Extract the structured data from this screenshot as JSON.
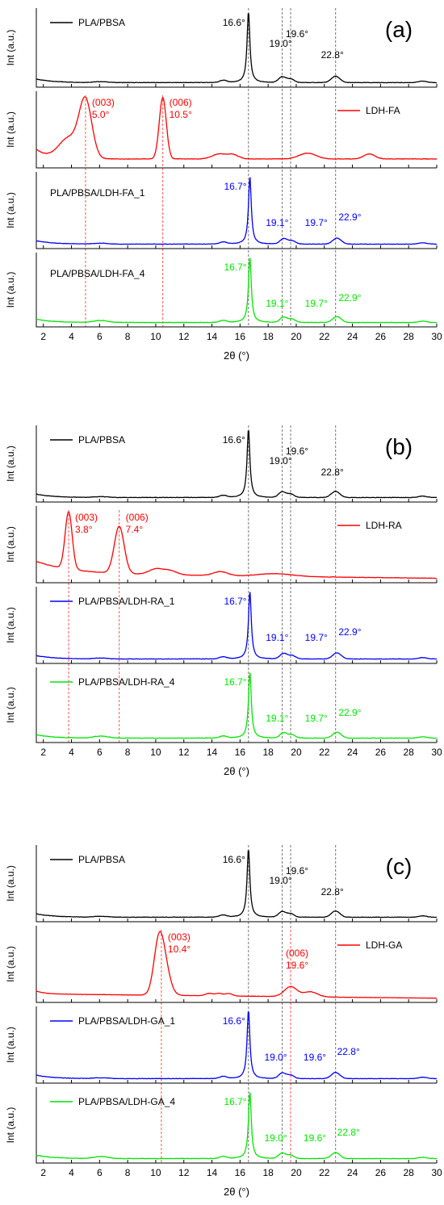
{
  "chart_data": [
    {
      "type": "line",
      "panel_label": "(a)",
      "xlabel": "2θ (°)",
      "xlim": [
        1.5,
        30
      ],
      "xticks": [
        "2",
        "4",
        "6",
        "8",
        "10",
        "12",
        "14",
        "16",
        "18",
        "20",
        "22",
        "24",
        "26",
        "28",
        "30"
      ],
      "ylabel": "Int (a.u.)",
      "colors": {
        "PLA/PBSA": "#000000",
        "LDH": "#ff0000",
        "blend_1": "#0000ff",
        "blend_4": "#00e600"
      },
      "gray_ref_lines": [
        16.6,
        19.0,
        19.6,
        22.8
      ],
      "red_ref_lines": [
        5.0,
        10.5
      ],
      "series": [
        {
          "name": "PLA/PBSA",
          "color": "#000000",
          "peaks": [
            {
              "x": 16.6,
              "label": "16.6°"
            },
            {
              "x": 19.0,
              "label": "19.0°"
            },
            {
              "x": 19.6,
              "label": "19.6°"
            },
            {
              "x": 22.8,
              "label": "22.8°"
            }
          ]
        },
        {
          "name": "LDH-FA",
          "color": "#ff0000",
          "peaks": [
            {
              "x": 5.0,
              "hkl": "(003)",
              "label": "5.0°"
            },
            {
              "x": 10.5,
              "hkl": "(006)",
              "label": "10.5°"
            }
          ]
        },
        {
          "name": "PLA/PBSA/LDH-FA_1",
          "color": "#0000ff",
          "peaks": [
            {
              "x": 16.7,
              "label": "16.7°"
            },
            {
              "x": 19.1,
              "label": "19.1°"
            },
            {
              "x": 19.7,
              "label": "19.7°"
            },
            {
              "x": 22.9,
              "label": "22.9°"
            }
          ]
        },
        {
          "name": "PLA/PBSA/LDH-FA_4",
          "color": "#00e600",
          "peaks": [
            {
              "x": 16.7,
              "label": "16.7°"
            },
            {
              "x": 19.1,
              "label": "19.1°"
            },
            {
              "x": 19.7,
              "label": "19.7°"
            },
            {
              "x": 22.9,
              "label": "22.9°"
            }
          ]
        }
      ]
    },
    {
      "type": "line",
      "panel_label": "(b)",
      "xlabel": "2θ (°)",
      "xlim": [
        1.5,
        30
      ],
      "xticks": [
        "2",
        "4",
        "6",
        "8",
        "10",
        "12",
        "14",
        "16",
        "18",
        "20",
        "22",
        "24",
        "26",
        "28",
        "30"
      ],
      "ylabel": "Int (a.u.)",
      "gray_ref_lines": [
        16.6,
        19.0,
        19.6,
        22.8
      ],
      "red_ref_lines": [
        3.8,
        7.4
      ],
      "series": [
        {
          "name": "PLA/PBSA",
          "color": "#000000",
          "peaks": [
            {
              "x": 16.6,
              "label": "16.6°"
            },
            {
              "x": 19.0,
              "label": "19.0°"
            },
            {
              "x": 19.6,
              "label": "19.6°"
            },
            {
              "x": 22.8,
              "label": "22.8°"
            }
          ]
        },
        {
          "name": "LDH-RA",
          "color": "#ff0000",
          "peaks": [
            {
              "x": 3.8,
              "hkl": "(003)",
              "label": "3.8°"
            },
            {
              "x": 7.4,
              "hkl": "(006)",
              "label": "7.4°"
            }
          ]
        },
        {
          "name": "PLA/PBSA/LDH-RA_1",
          "color": "#0000ff",
          "peaks": [
            {
              "x": 16.7,
              "label": "16.7°"
            },
            {
              "x": 19.1,
              "label": "19.1°"
            },
            {
              "x": 19.7,
              "label": "19.7°"
            },
            {
              "x": 22.9,
              "label": "22.9°"
            }
          ]
        },
        {
          "name": "PLA/PBSA/LDH-RA_4",
          "color": "#00e600",
          "peaks": [
            {
              "x": 16.7,
              "label": "16.7°"
            },
            {
              "x": 19.1,
              "label": "19.1°"
            },
            {
              "x": 19.7,
              "label": "19.7°"
            },
            {
              "x": 22.9,
              "label": "22.9°"
            }
          ]
        }
      ]
    },
    {
      "type": "line",
      "panel_label": "(c)",
      "xlabel": "2θ (°)",
      "xlim": [
        1.5,
        30
      ],
      "xticks": [
        "2",
        "4",
        "6",
        "8",
        "10",
        "12",
        "14",
        "16",
        "18",
        "20",
        "22",
        "24",
        "26",
        "28",
        "30"
      ],
      "ylabel": "Int (a.u.)",
      "gray_ref_lines": [
        16.6,
        19.0,
        19.6,
        22.8
      ],
      "red_ref_lines": [
        10.4,
        19.6
      ],
      "series": [
        {
          "name": "PLA/PBSA",
          "color": "#000000",
          "peaks": [
            {
              "x": 16.6,
              "label": "16.6°"
            },
            {
              "x": 19.0,
              "label": "19.0°"
            },
            {
              "x": 19.6,
              "label": "19.6°"
            },
            {
              "x": 22.8,
              "label": "22.8°"
            }
          ]
        },
        {
          "name": "LDH-GA",
          "color": "#ff0000",
          "peaks": [
            {
              "x": 10.4,
              "hkl": "(003)",
              "label": "10.4°"
            },
            {
              "x": 19.6,
              "hkl": "(006)",
              "label": "19.6°"
            }
          ]
        },
        {
          "name": "PLA/PBSA/LDH-GA_1",
          "color": "#0000ff",
          "peaks": [
            {
              "x": 16.6,
              "label": "16.6°"
            },
            {
              "x": 19.0,
              "label": "19.0°"
            },
            {
              "x": 19.6,
              "label": "19.6°"
            },
            {
              "x": 22.8,
              "label": "22.8°"
            }
          ]
        },
        {
          "name": "PLA/PBSA/LDH-GA_4",
          "color": "#00e600",
          "peaks": [
            {
              "x": 16.7,
              "label": "16.7°"
            },
            {
              "x": 19.0,
              "label": "19.0°"
            },
            {
              "x": 19.6,
              "label": "19.6°"
            },
            {
              "x": 22.8,
              "label": "22.8°"
            }
          ]
        }
      ]
    }
  ]
}
